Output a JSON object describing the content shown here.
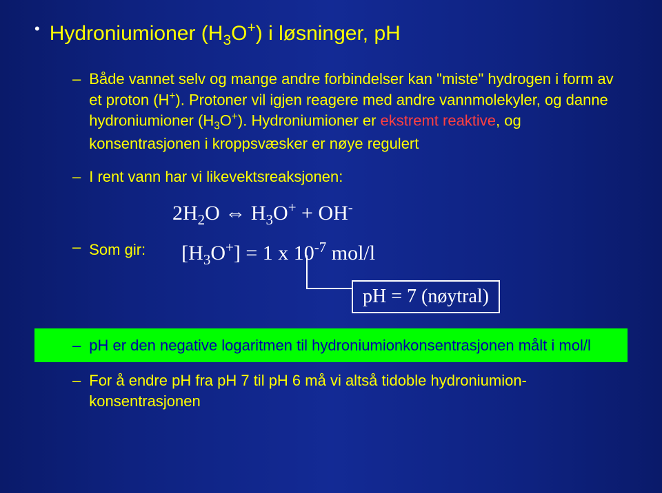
{
  "colors": {
    "background_gradient": [
      "#0a1a6a",
      "#132a95"
    ],
    "text_yellow": "#ffff00",
    "text_white": "#ffffff",
    "text_red": "#ff4040",
    "green_box_bg": "#00ff00",
    "green_box_text": "#0000aa"
  },
  "title": {
    "text_before_formula": "Hydroniumioner (H",
    "sub1": "3",
    "text_mid1": "O",
    "sup1": "+",
    "text_after_formula": ") i løsninger, pH"
  },
  "para1": {
    "text1": "Både vannet selv og mange andre forbindelser kan \"miste\" hydrogen i form av et proton (H",
    "sup1": "+",
    "text2": "). Protoner vil igjen reagere med andre vannmolekyler, og danne hydroniumioner (H",
    "sub1": "3",
    "text3": "O",
    "sup2": "+",
    "text4": "). Hydroniumioner er ",
    "reactive": "ekstremt reaktive",
    "text5": ", og konsentrasjonen i kroppsvæsker er nøye regulert"
  },
  "para2": "I rent vann har vi likevektsreaksjonen:",
  "formula1": {
    "a": "2H",
    "a_sub": "2",
    "b": "O ",
    "arrow": "⇔",
    "c": " H",
    "c_sub": "3",
    "d": "O",
    "d_sup": "+",
    "e": " + OH",
    "e_sup": "-"
  },
  "somgir": "Som gir:",
  "formula2": {
    "a": "[H",
    "a_sub": "3",
    "b": "O",
    "b_sup": "+",
    "c": "] = 1 x 10",
    "c_sup": "-7",
    "d": " mol/l"
  },
  "phbox": "pH = 7 (nøytral)",
  "greenbox": "pH er den negative logaritmen til hydroniumionkonsentrasjonen målt i mol/l",
  "footer": "For å endre pH fra pH 7 til pH 6 må vi altså tidoble hydroniumion-konsentrasjonen"
}
